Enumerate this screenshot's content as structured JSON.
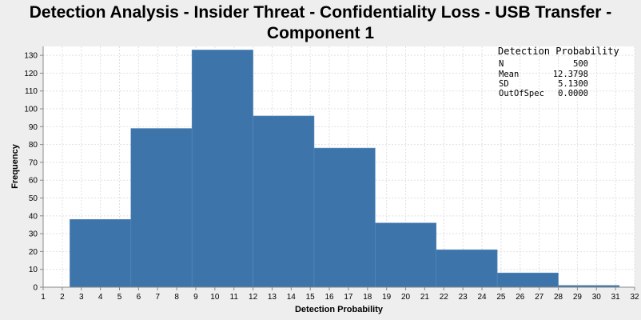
{
  "title_line1": "Detection Analysis - Insider Threat - Confidentiality Loss - USB Transfer -",
  "title_line2": "Component 1",
  "stats": {
    "title": "Detection Probability",
    "rows": [
      {
        "label": "N",
        "value": "500"
      },
      {
        "label": "Mean",
        "value": "12.3798"
      },
      {
        "label": "SD",
        "value": "5.1300"
      },
      {
        "label": "OutOfSpec",
        "value": "0.0000"
      }
    ]
  },
  "chart_data": {
    "type": "bar",
    "xlabel": "Detection Probability",
    "ylabel": "Frequency",
    "xlim": [
      1,
      32
    ],
    "ylim": [
      0,
      135
    ],
    "xticks": [
      1,
      2,
      3,
      4,
      5,
      6,
      7,
      8,
      9,
      10,
      11,
      12,
      13,
      14,
      15,
      16,
      17,
      18,
      19,
      20,
      21,
      22,
      23,
      24,
      25,
      26,
      27,
      28,
      29,
      30,
      31,
      32
    ],
    "yticks": [
      0,
      10,
      20,
      30,
      40,
      50,
      60,
      70,
      80,
      90,
      100,
      110,
      120,
      130
    ],
    "grid": true,
    "bins": [
      {
        "start": 2.4,
        "end": 5.6,
        "value": 38
      },
      {
        "start": 5.6,
        "end": 8.8,
        "value": 89
      },
      {
        "start": 8.8,
        "end": 12.0,
        "value": 133
      },
      {
        "start": 12.0,
        "end": 15.2,
        "value": 96
      },
      {
        "start": 15.2,
        "end": 18.4,
        "value": 78
      },
      {
        "start": 18.4,
        "end": 21.6,
        "value": 36
      },
      {
        "start": 21.6,
        "end": 24.8,
        "value": 21
      },
      {
        "start": 24.8,
        "end": 28.0,
        "value": 8
      },
      {
        "start": 28.0,
        "end": 31.2,
        "value": 1
      }
    ],
    "bar_color": "#3d74aa"
  }
}
